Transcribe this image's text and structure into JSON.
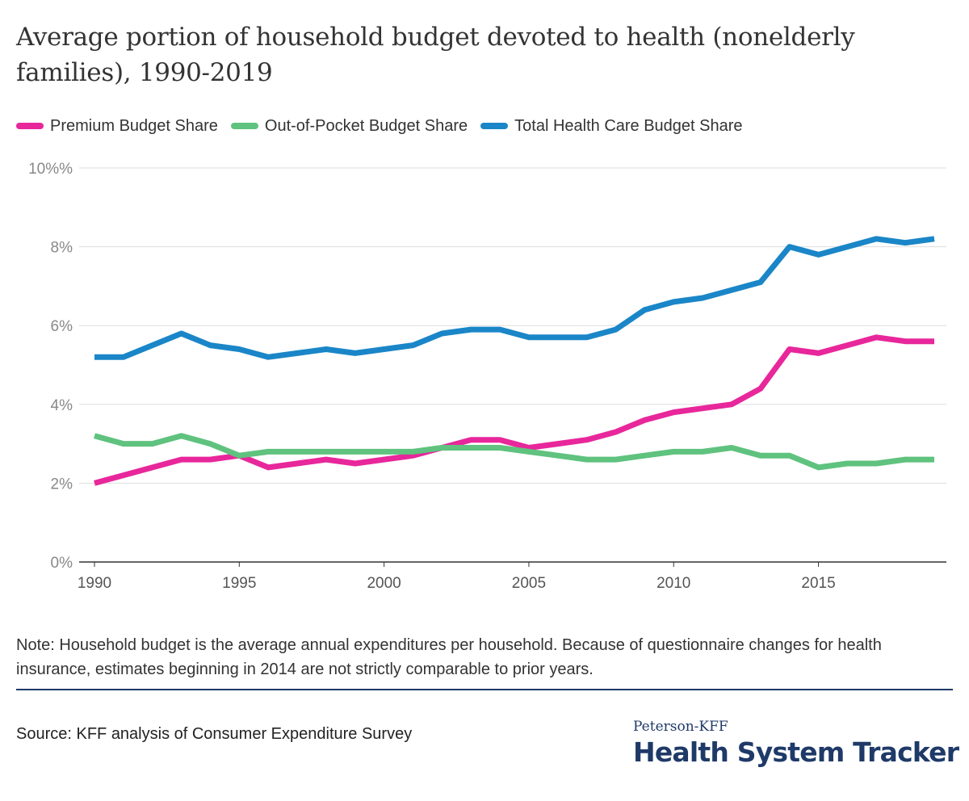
{
  "title": "Average portion of household budget devoted to health (nonelderly families), 1990-2019",
  "note": "Note: Household budget is the average annual expenditures per household. Because of questionnaire changes for health insurance, estimates beginning in 2014 are not strictly comparable to prior years.",
  "source": "Source: KFF analysis of Consumer Expenditure Survey",
  "brand": {
    "top": "Peterson-KFF",
    "main": "Health System Tracker"
  },
  "colors": {
    "premium": "#e8279b",
    "oop": "#5fc27e",
    "total": "#1a86c8",
    "grid": "#dddddd",
    "axis": "#333333",
    "rule": "#1f3a68"
  },
  "chart_data": {
    "type": "line",
    "x": [
      1990,
      1991,
      1992,
      1993,
      1994,
      1995,
      1996,
      1997,
      1998,
      1999,
      2000,
      2001,
      2002,
      2003,
      2004,
      2005,
      2006,
      2007,
      2008,
      2009,
      2010,
      2011,
      2012,
      2013,
      2014,
      2015,
      2016,
      2017,
      2018,
      2019
    ],
    "series": [
      {
        "name": "Premium Budget Share",
        "color": "#e8279b",
        "values": [
          2.0,
          2.2,
          2.4,
          2.6,
          2.6,
          2.7,
          2.4,
          2.5,
          2.6,
          2.5,
          2.6,
          2.7,
          2.9,
          3.1,
          3.1,
          2.9,
          3.0,
          3.1,
          3.3,
          3.6,
          3.8,
          3.9,
          4.0,
          4.4,
          5.4,
          5.3,
          5.5,
          5.7,
          5.6,
          5.6
        ]
      },
      {
        "name": "Out-of-Pocket Budget Share",
        "color": "#5fc27e",
        "values": [
          3.2,
          3.0,
          3.0,
          3.2,
          3.0,
          2.7,
          2.8,
          2.8,
          2.8,
          2.8,
          2.8,
          2.8,
          2.9,
          2.9,
          2.9,
          2.8,
          2.7,
          2.6,
          2.6,
          2.7,
          2.8,
          2.8,
          2.9,
          2.7,
          2.7,
          2.4,
          2.5,
          2.5,
          2.6,
          2.6
        ]
      },
      {
        "name": "Total Health Care Budget Share",
        "color": "#1a86c8",
        "values": [
          5.2,
          5.2,
          5.5,
          5.8,
          5.5,
          5.4,
          5.2,
          5.3,
          5.4,
          5.3,
          5.4,
          5.5,
          5.8,
          5.9,
          5.9,
          5.7,
          5.7,
          5.7,
          5.9,
          6.4,
          6.6,
          6.7,
          6.9,
          7.1,
          8.0,
          7.8,
          8.0,
          8.2,
          8.1,
          8.2
        ]
      }
    ],
    "ylim": [
      0,
      10
    ],
    "yticks": [
      0,
      2,
      4,
      6,
      8,
      10
    ],
    "ytick_labels": [
      "0%",
      "2%",
      "4%",
      "6%",
      "8%",
      "10%%"
    ],
    "xticks": [
      1990,
      1995,
      2000,
      2005,
      2010,
      2015
    ],
    "xtick_labels": [
      "1990",
      "1995",
      "2000",
      "2005",
      "2010",
      "2015"
    ],
    "xlim": [
      1990,
      2019
    ],
    "grid": true,
    "legend": "top-left"
  }
}
